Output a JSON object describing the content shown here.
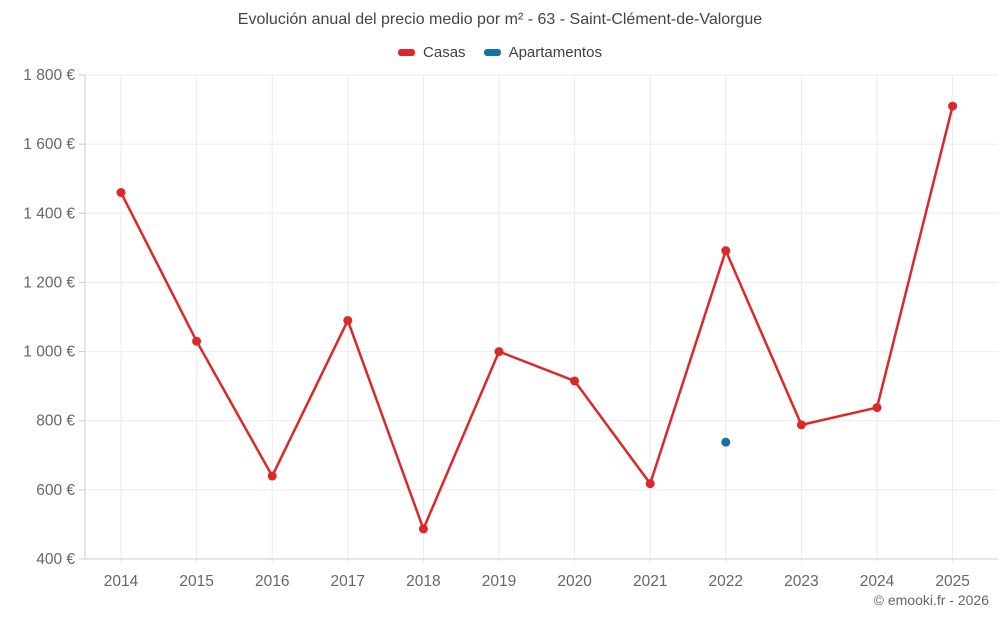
{
  "chart_data": {
    "type": "line",
    "title": "Evolución anual del precio medio por m² - 63 - Saint-Clément-de-Valorgue",
    "categories": [
      "2014",
      "2015",
      "2016",
      "2017",
      "2018",
      "2019",
      "2020",
      "2021",
      "2022",
      "2023",
      "2024",
      "2025"
    ],
    "series": [
      {
        "name": "Casas",
        "color": "#dc2828",
        "values": [
          1460,
          1030,
          640,
          1090,
          487,
          1000,
          915,
          618,
          1292,
          788,
          838,
          1710
        ]
      },
      {
        "name": "Apartamentos",
        "color": "#1571a8",
        "values": [
          null,
          null,
          null,
          null,
          null,
          null,
          null,
          null,
          738,
          null,
          null,
          null
        ]
      }
    ],
    "ylabel": "",
    "xlabel": "",
    "y_unit": "€",
    "ylim": [
      400,
      1800
    ],
    "ytick_step": 200,
    "grid": true,
    "legend_position": "top"
  },
  "footer": {
    "copyright": "© emooki.fr - 2026"
  }
}
